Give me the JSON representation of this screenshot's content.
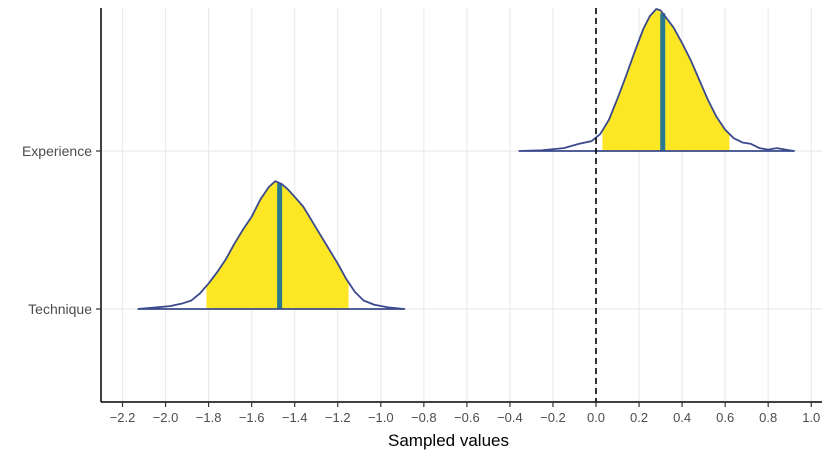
{
  "chart_data": {
    "type": "density",
    "title": "",
    "xlabel": "Sampled values",
    "ylabel": "",
    "xlim": [
      -2.3,
      1.05
    ],
    "grid": true,
    "x_ticks": [
      -2.2,
      -2.0,
      -1.8,
      -1.6,
      -1.4,
      -1.2,
      -1.0,
      -0.8,
      -0.6,
      -0.4,
      -0.2,
      0.0,
      0.2,
      0.4,
      0.6,
      0.8,
      1.0
    ],
    "x_tick_labels": [
      "−2.2",
      "−2.0",
      "−1.8",
      "−1.6",
      "−1.4",
      "−1.2",
      "−1.0",
      "−0.8",
      "−0.6",
      "−0.4",
      "−0.2",
      "0.0",
      "0.2",
      "0.4",
      "0.6",
      "0.8",
      "1.0"
    ],
    "reference_line": {
      "x": 0.0,
      "style": "dashed"
    },
    "colors": {
      "outline": "#3b4a8c",
      "fill": "#fde725",
      "point": "#2a788e",
      "grid": "#ebebeb",
      "axis": "#000000"
    },
    "series": [
      {
        "name": "Experience",
        "point": 0.31,
        "interval": [
          0.03,
          0.62
        ],
        "density": {
          "x": [
            -0.36,
            -0.25,
            -0.15,
            -0.08,
            -0.02,
            0.02,
            0.06,
            0.1,
            0.14,
            0.18,
            0.22,
            0.25,
            0.28,
            0.3,
            0.31,
            0.33,
            0.36,
            0.4,
            0.44,
            0.48,
            0.52,
            0.56,
            0.6,
            0.64,
            0.68,
            0.72,
            0.76,
            0.8,
            0.84,
            0.88,
            0.92
          ],
          "y": [
            0,
            0.005,
            0.02,
            0.05,
            0.07,
            0.12,
            0.22,
            0.37,
            0.53,
            0.7,
            0.86,
            0.95,
            1.0,
            0.99,
            0.97,
            0.93,
            0.87,
            0.76,
            0.64,
            0.5,
            0.36,
            0.24,
            0.15,
            0.09,
            0.06,
            0.05,
            0.02,
            0.01,
            0.02,
            0.01,
            0
          ]
        }
      },
      {
        "name": "Technique",
        "point": -1.47,
        "interval": [
          -1.81,
          -1.15
        ],
        "density": {
          "x": [
            -2.13,
            -2.05,
            -1.98,
            -1.92,
            -1.88,
            -1.84,
            -1.8,
            -1.76,
            -1.72,
            -1.68,
            -1.64,
            -1.6,
            -1.56,
            -1.52,
            -1.49,
            -1.46,
            -1.43,
            -1.4,
            -1.36,
            -1.32,
            -1.28,
            -1.24,
            -1.2,
            -1.16,
            -1.12,
            -1.08,
            -1.03,
            -0.96,
            -0.89
          ],
          "y": [
            0,
            0.01,
            0.02,
            0.04,
            0.06,
            0.11,
            0.18,
            0.26,
            0.35,
            0.46,
            0.56,
            0.65,
            0.77,
            0.86,
            0.9,
            0.88,
            0.84,
            0.79,
            0.72,
            0.62,
            0.52,
            0.42,
            0.32,
            0.21,
            0.12,
            0.06,
            0.03,
            0.01,
            0
          ]
        }
      }
    ]
  }
}
